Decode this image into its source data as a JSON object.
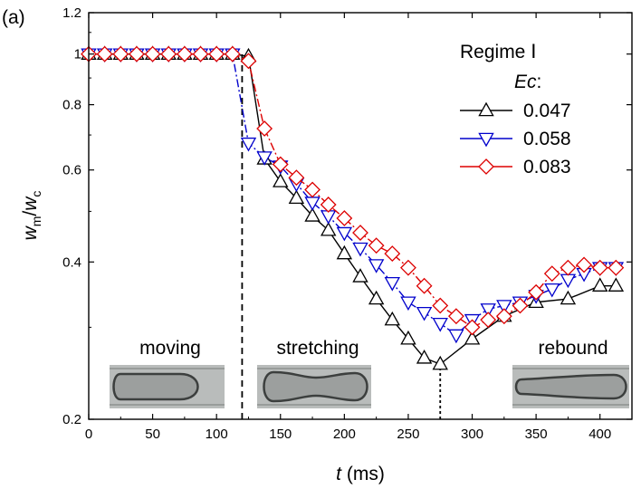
{
  "chart_data": {
    "type": "line",
    "panel_label": "(a)",
    "title": "",
    "xlabel": {
      "var": "t",
      "unit": " (ms)"
    },
    "ylabel": {
      "main": "w",
      "sub1": "m",
      "slash": "/",
      "main2": "w",
      "sub2": "c"
    },
    "xlim": [
      0,
      425
    ],
    "ylim": [
      0.2,
      1.2
    ],
    "yscale": "log",
    "x_ticks": [
      0,
      50,
      100,
      150,
      200,
      250,
      300,
      350,
      400
    ],
    "y_ticks": [
      0.2,
      0.4,
      0.6,
      0.8,
      1,
      1.2
    ],
    "y_tick_labels": [
      "0.2",
      "0.4",
      "0.6",
      "0.8",
      "1",
      "1.2"
    ],
    "legend": {
      "position": "top-right",
      "title": "Regime Ⅰ",
      "subtitle": "Ec",
      "subtitle_suffix": ":"
    },
    "series": [
      {
        "name": "0.047",
        "color": "#000000",
        "marker": "triangle-up",
        "x": [
          0,
          12.5,
          25,
          37.5,
          50,
          62.5,
          75,
          87.5,
          100,
          112.5,
          125,
          137.5,
          150,
          162.5,
          175,
          187.5,
          200,
          212.5,
          225,
          237.5,
          250,
          262.5,
          275,
          300,
          325,
          350,
          375,
          400,
          412.5
        ],
        "y": [
          1.0,
          1.0,
          1.0,
          1.0,
          1.0,
          1.0,
          1.0,
          1.0,
          1.0,
          1.0,
          0.99,
          0.63,
          0.57,
          0.53,
          0.49,
          0.46,
          0.415,
          0.375,
          0.34,
          0.31,
          0.285,
          0.262,
          0.255,
          0.285,
          0.315,
          0.335,
          0.34,
          0.36,
          0.36
        ]
      },
      {
        "name": "0.058",
        "color": "#0000cc",
        "marker": "triangle-down",
        "x": [
          0,
          12.5,
          25,
          37.5,
          50,
          62.5,
          75,
          87.5,
          100,
          112.5,
          125,
          137.5,
          150,
          162.5,
          175,
          187.5,
          200,
          212.5,
          225,
          237.5,
          250,
          262.5,
          275,
          287.5,
          300,
          312.5,
          325,
          337.5,
          350,
          362.5,
          375,
          387.5,
          400,
          412.5
        ],
        "y": [
          1.0,
          1.0,
          1.0,
          1.0,
          1.0,
          1.0,
          1.0,
          1.0,
          1.0,
          1.0,
          0.675,
          0.635,
          0.61,
          0.565,
          0.52,
          0.49,
          0.455,
          0.425,
          0.395,
          0.365,
          0.335,
          0.32,
          0.305,
          0.29,
          0.31,
          0.325,
          0.33,
          0.335,
          0.345,
          0.355,
          0.37,
          0.38,
          0.39,
          0.39
        ]
      },
      {
        "name": "0.083",
        "color": "#dd0000",
        "marker": "diamond",
        "x": [
          0,
          12.5,
          25,
          37.5,
          50,
          62.5,
          75,
          87.5,
          100,
          112.5,
          125,
          137.5,
          150,
          162.5,
          175,
          187.5,
          200,
          212.5,
          225,
          237.5,
          250,
          262.5,
          275,
          287.5,
          300,
          312.5,
          325,
          337.5,
          350,
          362.5,
          375,
          387.5,
          400,
          412.5
        ],
        "y": [
          1.0,
          1.0,
          1.0,
          1.0,
          1.0,
          1.0,
          1.0,
          1.0,
          1.0,
          1.0,
          0.97,
          0.72,
          0.615,
          0.58,
          0.55,
          0.515,
          0.485,
          0.455,
          0.43,
          0.415,
          0.39,
          0.36,
          0.33,
          0.315,
          0.3,
          0.31,
          0.315,
          0.33,
          0.35,
          0.38,
          0.39,
          0.395,
          0.39,
          0.39
        ]
      }
    ],
    "annotations": [
      {
        "type": "vline-dashed",
        "x": 120,
        "y_from": 0.2,
        "y_to": 1.0
      },
      {
        "type": "vline-dotted",
        "x": 275,
        "y_from": 0.2,
        "y_to": 0.255
      }
    ],
    "insets": [
      {
        "label": "moving",
        "shape": "bullet"
      },
      {
        "label": "stretching",
        "shape": "peanut"
      },
      {
        "label": "rebound",
        "shape": "rebound"
      }
    ]
  }
}
